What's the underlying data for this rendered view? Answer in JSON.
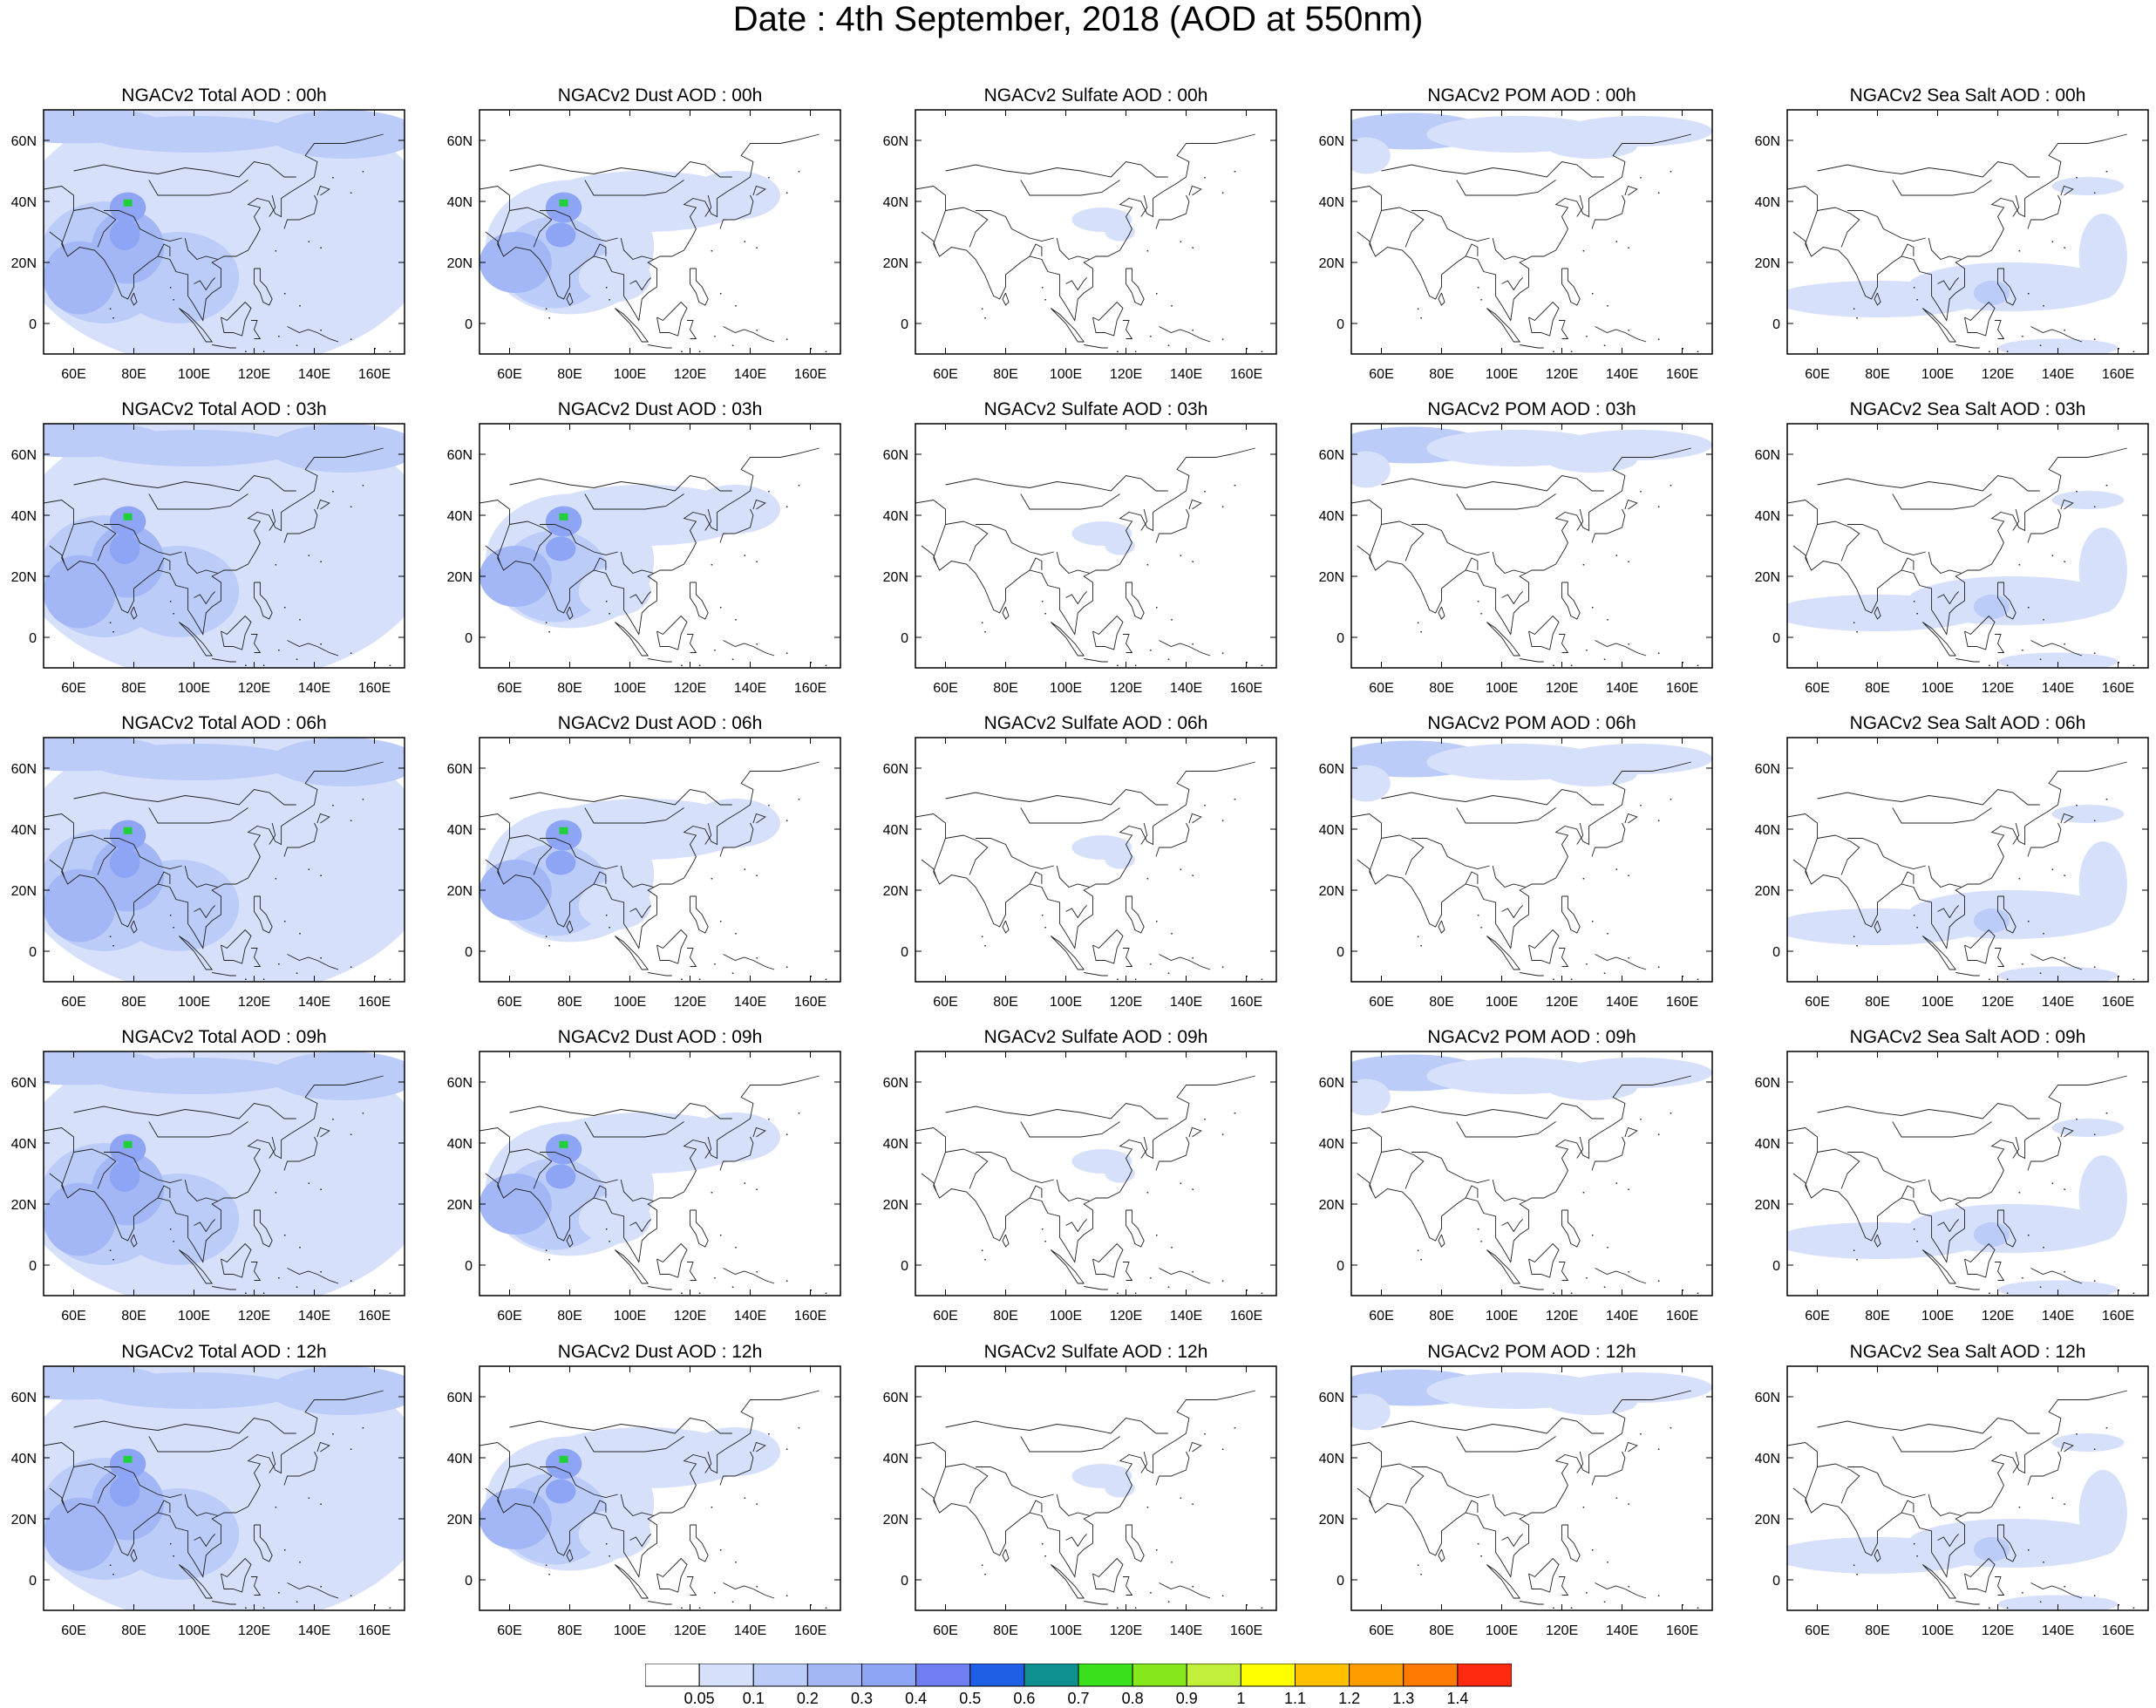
{
  "title": "Date : 4th September, 2018 (AOD at 550nm)",
  "panel_titles": [
    [
      "NGACv2 Total AOD : 00h",
      "NGACv2 Dust AOD : 00h",
      "NGACv2 Sulfate AOD : 00h",
      "NGACv2 POM AOD : 00h",
      "NGACv2 Sea Salt AOD : 00h"
    ],
    [
      "NGACv2 Total AOD : 03h",
      "NGACv2 Dust AOD : 03h",
      "NGACv2 Sulfate AOD : 03h",
      "NGACv2 POM AOD : 03h",
      "NGACv2 Sea Salt AOD : 03h"
    ],
    [
      "NGACv2 Total AOD : 06h",
      "NGACv2 Dust AOD : 06h",
      "NGACv2 Sulfate AOD : 06h",
      "NGACv2 POM AOD : 06h",
      "NGACv2 Sea Salt AOD : 06h"
    ],
    [
      "NGACv2 Total AOD : 09h",
      "NGACv2 Dust AOD : 09h",
      "NGACv2 Sulfate AOD : 09h",
      "NGACv2 POM AOD : 09h",
      "NGACv2 Sea Salt  AOD : 09h"
    ],
    [
      "NGACv2 Total AOD  : 12h",
      "NGACv2 Dust AOD : 12h",
      "NGACv2 Sulfate AOD : 12h",
      "NGACv2 POM  AOD : 12h",
      "NGACv2 Sea Salt  AOD : 12h"
    ]
  ],
  "lon_ticks": [
    "60E",
    "80E",
    "100E",
    "120E",
    "140E",
    "160E"
  ],
  "lon_values": [
    60,
    80,
    100,
    120,
    140,
    160
  ],
  "lat_ticks": [
    "60N",
    "40N",
    "20N",
    "0"
  ],
  "lat_values": [
    60,
    40,
    20,
    0
  ],
  "map_extent": {
    "lon_min": 50,
    "lon_max": 170,
    "lat_min": -10,
    "lat_max": 70
  },
  "colorbar": {
    "labels": [
      "0.05",
      "0.1",
      "0.2",
      "0.3",
      "0.4",
      "0.5",
      "0.6",
      "0.7",
      "0.8",
      "0.9",
      "1",
      "1.1",
      "1.2",
      "1.3",
      "1.4"
    ],
    "colors": [
      "#ffffff",
      "#d6e0fb",
      "#bcccf9",
      "#a3b7f6",
      "#8ea4f4",
      "#6f7ef0",
      "#1f5fe8",
      "#0f8f8f",
      "#3ae01c",
      "#86e81a",
      "#c2f03a",
      "#ffff00",
      "#ffc000",
      "#ff9c00",
      "#ff7a00",
      "#ff2a10"
    ]
  },
  "chart_data": {
    "type": "heatmap",
    "title": "Date : 4th September, 2018 (AOD at 550nm)",
    "variables": [
      "Total",
      "Dust",
      "Sulfate",
      "POM",
      "Sea Salt"
    ],
    "forecast_hours": [
      "00h",
      "03h",
      "06h",
      "09h",
      "12h"
    ],
    "xlabel": "",
    "ylabel": "",
    "xlim": [
      50,
      170
    ],
    "ylim": [
      -10,
      70
    ],
    "levels": [
      0.05,
      0.1,
      0.2,
      0.3,
      0.4,
      0.5,
      0.6,
      0.7,
      0.8,
      0.9,
      1,
      1.1,
      1.2,
      1.3,
      1.4
    ],
    "grid": false,
    "legend": "bottom"
  }
}
